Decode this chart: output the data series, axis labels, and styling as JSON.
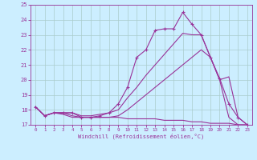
{
  "x": [
    0,
    1,
    2,
    3,
    4,
    5,
    6,
    7,
    8,
    9,
    10,
    11,
    12,
    13,
    14,
    15,
    16,
    17,
    18,
    19,
    20,
    21,
    22,
    23
  ],
  "line_marked": [
    18.2,
    17.6,
    17.8,
    17.8,
    17.8,
    17.5,
    17.5,
    17.6,
    17.8,
    18.4,
    19.5,
    21.5,
    22.0,
    23.3,
    23.4,
    23.4,
    24.5,
    23.7,
    23.0,
    21.5,
    20.1,
    18.4,
    17.5,
    17.0
  ],
  "line_upper": [
    18.2,
    17.6,
    17.8,
    17.8,
    17.8,
    17.6,
    17.6,
    17.7,
    17.8,
    18.0,
    18.8,
    19.5,
    20.3,
    21.0,
    21.7,
    22.4,
    23.1,
    23.0,
    23.0,
    21.5,
    20.0,
    20.2,
    17.5,
    17.0
  ],
  "line_lower": [
    18.2,
    17.6,
    17.8,
    17.8,
    17.6,
    17.5,
    17.5,
    17.5,
    17.5,
    17.6,
    18.0,
    18.5,
    19.0,
    19.5,
    20.0,
    20.5,
    21.0,
    21.5,
    22.0,
    21.5,
    20.0,
    17.5,
    17.0,
    17.0
  ],
  "line_flat": [
    18.2,
    17.6,
    17.8,
    17.7,
    17.5,
    17.5,
    17.5,
    17.5,
    17.5,
    17.5,
    17.4,
    17.4,
    17.4,
    17.4,
    17.3,
    17.3,
    17.3,
    17.2,
    17.2,
    17.1,
    17.1,
    17.1,
    17.0,
    17.0
  ],
  "color": "#993399",
  "bg_color": "#cceeff",
  "grid_color": "#aacccc",
  "xlim": [
    -0.5,
    23.5
  ],
  "ylim": [
    17,
    25
  ],
  "yticks": [
    17,
    18,
    19,
    20,
    21,
    22,
    23,
    24,
    25
  ],
  "xticks": [
    0,
    1,
    2,
    3,
    4,
    5,
    6,
    7,
    8,
    9,
    10,
    11,
    12,
    13,
    14,
    15,
    16,
    17,
    18,
    19,
    20,
    21,
    22,
    23
  ],
  "xlabel": "Windchill (Refroidissement éolien,°C)",
  "marker": "+"
}
